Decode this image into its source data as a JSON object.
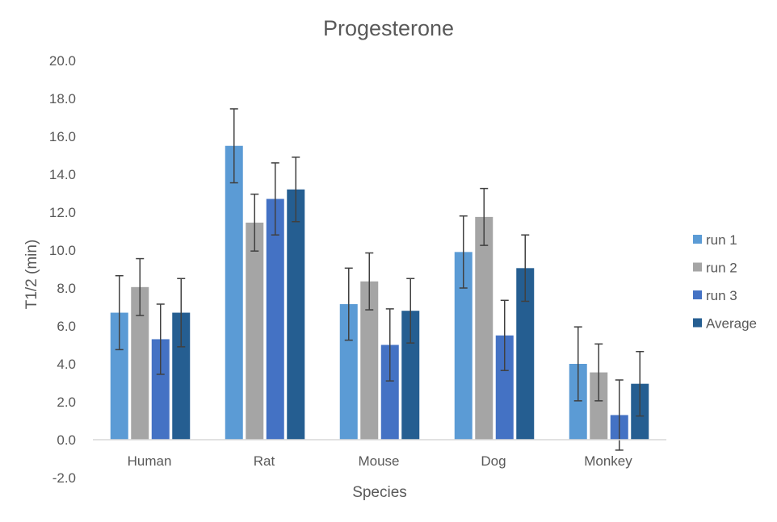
{
  "chart_data": {
    "type": "bar",
    "title": "Progesterone",
    "xlabel": "Species",
    "ylabel": "T1/2 (min)",
    "ylim": [
      -2,
      20
    ],
    "yticks": [
      "-2.0",
      "0.0",
      "2.0",
      "4.0",
      "6.0",
      "8.0",
      "10.0",
      "12.0",
      "14.0",
      "16.0",
      "18.0",
      "20.0"
    ],
    "grid": false,
    "legend_position": "right",
    "categories": [
      "Human",
      "Rat",
      "Mouse",
      "Dog",
      "Monkey"
    ],
    "series": [
      {
        "name": "run 1",
        "color": "#5B9BD5",
        "values": [
          6.7,
          15.5,
          7.15,
          9.9,
          4.0
        ],
        "errors": [
          1.95,
          1.95,
          1.9,
          1.9,
          1.95
        ]
      },
      {
        "name": "run 2",
        "color": "#A5A5A5",
        "values": [
          8.05,
          11.45,
          8.35,
          11.75,
          3.55
        ],
        "errors": [
          1.5,
          1.5,
          1.5,
          1.5,
          1.5
        ]
      },
      {
        "name": "run 3",
        "color": "#4472C4",
        "values": [
          5.3,
          12.7,
          5.0,
          5.5,
          1.3
        ],
        "errors": [
          1.85,
          1.9,
          1.9,
          1.85,
          1.85
        ]
      },
      {
        "name": "Average",
        "color": "#255E91",
        "values": [
          6.7,
          13.2,
          6.8,
          9.05,
          2.95
        ],
        "errors": [
          1.8,
          1.7,
          1.7,
          1.75,
          1.7
        ]
      }
    ]
  }
}
